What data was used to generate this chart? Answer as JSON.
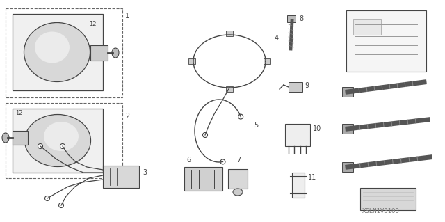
{
  "bg_color": "#ffffff",
  "fig_width": 6.4,
  "fig_height": 3.19,
  "dpi": 100,
  "watermark": "XSLN1V3100",
  "lc": "#444444",
  "lc2": "#888888"
}
